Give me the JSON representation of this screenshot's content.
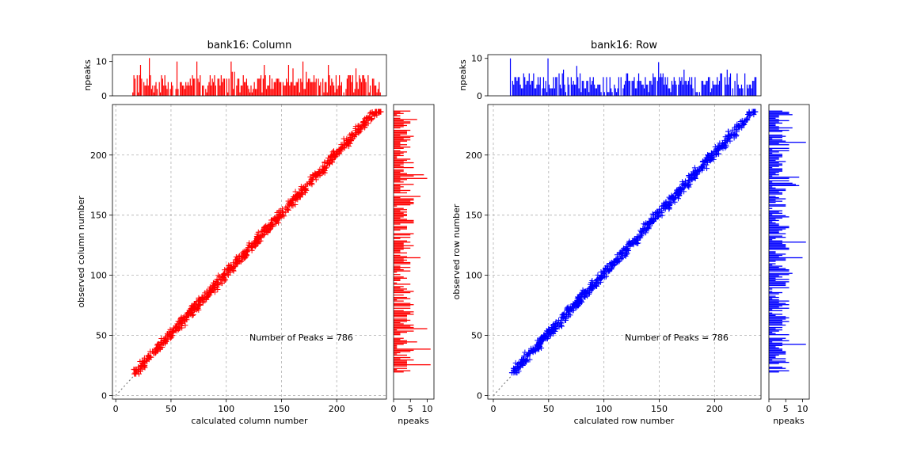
{
  "chart_data": [
    {
      "type": "scatter",
      "title": "bank16: Column",
      "xlabel": "calculated column number",
      "ylabel": "observed column number",
      "xlim": [
        -3,
        245
      ],
      "ylim": [
        -3,
        242
      ],
      "xticks": [
        0,
        50,
        100,
        150,
        200
      ],
      "yticks": [
        0,
        50,
        100,
        150,
        200
      ],
      "grid": true,
      "marker": "+",
      "color": "#ff0000",
      "annotation": "Number of Peaks = 786",
      "reference_line": "y = x",
      "points_summary": {
        "count": 786,
        "x_range": [
          16,
          240
        ],
        "y_range": [
          18,
          236
        ],
        "relation": "y ≈ x"
      },
      "sample_points": [
        [
          16,
          19
        ],
        [
          20,
          24
        ],
        [
          25,
          27
        ],
        [
          30,
          33
        ],
        [
          35,
          38
        ],
        [
          40,
          42
        ],
        [
          45,
          45
        ],
        [
          50,
          52
        ],
        [
          55,
          58
        ],
        [
          60,
          62
        ],
        [
          65,
          67
        ],
        [
          70,
          71
        ],
        [
          75,
          77
        ],
        [
          80,
          82
        ],
        [
          85,
          87
        ],
        [
          90,
          92
        ],
        [
          95,
          97
        ],
        [
          100,
          102
        ],
        [
          105,
          107
        ],
        [
          110,
          112
        ],
        [
          115,
          117
        ],
        [
          120,
          122
        ],
        [
          125,
          126
        ],
        [
          130,
          132
        ],
        [
          135,
          137
        ],
        [
          140,
          142
        ],
        [
          145,
          147
        ],
        [
          150,
          152
        ],
        [
          155,
          157
        ],
        [
          160,
          162
        ],
        [
          165,
          167
        ],
        [
          170,
          172
        ],
        [
          175,
          177
        ],
        [
          180,
          182
        ],
        [
          185,
          187
        ],
        [
          190,
          192
        ],
        [
          195,
          197
        ],
        [
          200,
          201
        ],
        [
          205,
          206
        ],
        [
          210,
          211
        ],
        [
          215,
          216
        ],
        [
          220,
          220
        ],
        [
          225,
          225
        ],
        [
          230,
          230
        ],
        [
          235,
          234
        ],
        [
          240,
          236
        ]
      ],
      "top_hist": {
        "ylabel": "npeaks",
        "ylim": [
          0,
          12
        ],
        "yticks": [
          0,
          10
        ],
        "xlim": [
          -3,
          245
        ],
        "x_range": [
          15,
          239
        ],
        "max_value": 11
      },
      "side_hist": {
        "xlabel": "npeaks",
        "xlim": [
          0,
          12
        ],
        "xticks": [
          0,
          5,
          10
        ],
        "ylim": [
          -3,
          242
        ],
        "y_range": [
          19,
          236
        ],
        "max_value": 11
      }
    },
    {
      "type": "scatter",
      "title": "bank16: Row",
      "xlabel": "calculated row number",
      "ylabel": "observed row number",
      "xlim": [
        -5,
        242
      ],
      "ylim": [
        -3,
        242
      ],
      "xticks": [
        0,
        50,
        100,
        150,
        200
      ],
      "yticks": [
        0,
        50,
        100,
        150,
        200
      ],
      "grid": true,
      "marker": "+",
      "color": "#0000ff",
      "annotation": "Number of Peaks = 786",
      "reference_line": "y = x",
      "points_summary": {
        "count": 786,
        "x_range": [
          16,
          237
        ],
        "y_range": [
          19,
          236
        ],
        "relation": "y ≈ x"
      },
      "sample_points": [
        [
          16,
          21
        ],
        [
          20,
          24
        ],
        [
          25,
          28
        ],
        [
          30,
          33
        ],
        [
          35,
          38
        ],
        [
          40,
          42
        ],
        [
          45,
          47
        ],
        [
          50,
          52
        ],
        [
          55,
          58
        ],
        [
          60,
          62
        ],
        [
          65,
          67
        ],
        [
          70,
          72
        ],
        [
          75,
          77
        ],
        [
          80,
          82
        ],
        [
          85,
          87
        ],
        [
          90,
          92
        ],
        [
          95,
          97
        ],
        [
          100,
          102
        ],
        [
          105,
          107
        ],
        [
          110,
          112
        ],
        [
          115,
          117
        ],
        [
          120,
          122
        ],
        [
          125,
          127
        ],
        [
          130,
          132
        ],
        [
          135,
          137
        ],
        [
          140,
          142
        ],
        [
          145,
          147
        ],
        [
          150,
          152
        ],
        [
          155,
          157
        ],
        [
          160,
          162
        ],
        [
          165,
          167
        ],
        [
          170,
          172
        ],
        [
          175,
          177
        ],
        [
          180,
          182
        ],
        [
          185,
          187
        ],
        [
          190,
          192
        ],
        [
          195,
          197
        ],
        [
          200,
          202
        ],
        [
          205,
          207
        ],
        [
          210,
          212
        ],
        [
          215,
          217
        ],
        [
          220,
          221
        ],
        [
          225,
          226
        ],
        [
          230,
          230
        ],
        [
          235,
          234
        ],
        [
          237,
          236
        ]
      ],
      "top_hist": {
        "ylabel": "npeaks",
        "ylim": [
          0,
          11
        ],
        "yticks": [
          0,
          10
        ],
        "xlim": [
          -5,
          242
        ],
        "x_range": [
          15,
          237
        ],
        "max_value": 10
      },
      "side_hist": {
        "xlabel": "npeaks",
        "xlim": [
          0,
          12
        ],
        "xticks": [
          0,
          5,
          10
        ],
        "ylim": [
          -3,
          242
        ],
        "y_range": [
          19,
          236
        ],
        "max_value": 11
      }
    }
  ]
}
